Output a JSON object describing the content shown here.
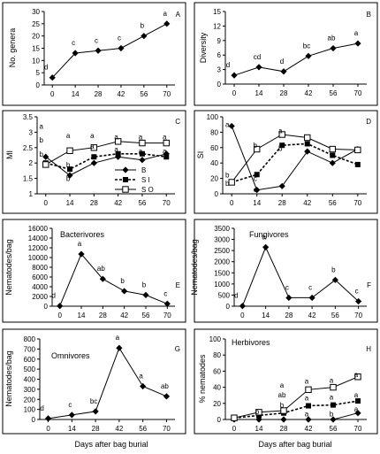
{
  "x_axis_title": "Days after bag burial",
  "chart_data": [
    {
      "id": "A",
      "type": "line",
      "panel_letter": "A",
      "title": "",
      "ylabel": "No. genera",
      "ylim": [
        0,
        30
      ],
      "yticks": [
        "0",
        "5",
        "10",
        "15",
        "20",
        "25",
        "30"
      ],
      "x": [
        0,
        14,
        28,
        42,
        56,
        70
      ],
      "xticks": [
        "0",
        "14",
        "28",
        "42",
        "56",
        "70"
      ],
      "series": [
        {
          "marker": "diamond",
          "line": "solid",
          "values": [
            3,
            13,
            14,
            15,
            20,
            25
          ],
          "labels": [
            "d",
            "c",
            "c",
            "c",
            "b",
            "a"
          ]
        }
      ]
    },
    {
      "id": "B",
      "type": "line",
      "panel_letter": "B",
      "title": "",
      "ylabel": "Diversity",
      "ylim": [
        0,
        15
      ],
      "yticks": [
        "0",
        "3",
        "6",
        "9",
        "12",
        "15"
      ],
      "x": [
        0,
        14,
        28,
        42,
        56,
        70
      ],
      "xticks": [
        "0",
        "14",
        "28",
        "42",
        "56",
        "70"
      ],
      "series": [
        {
          "marker": "diamond",
          "line": "solid",
          "values": [
            1.8,
            3.5,
            2.6,
            5.8,
            7.4,
            8.4
          ],
          "labels": [
            "d",
            "cd",
            "d",
            "bc",
            "ab",
            "a"
          ]
        }
      ]
    },
    {
      "id": "C",
      "type": "line",
      "panel_letter": "C",
      "title": "",
      "ylabel": "MI",
      "ylim": [
        1,
        3.5
      ],
      "yticks": [
        "1",
        "1.5",
        "2",
        "2.5",
        "3",
        "3.5"
      ],
      "x": [
        0,
        14,
        28,
        42,
        56,
        70
      ],
      "xticks": [
        "0",
        "14",
        "28",
        "42",
        "56",
        "70"
      ],
      "legend": [
        "B",
        "S I",
        "S O"
      ],
      "series": [
        {
          "name": "B",
          "marker": "diamond",
          "line": "solid",
          "values": [
            2.2,
            1.6,
            2.0,
            2.2,
            2.1,
            2.3
          ]
        },
        {
          "name": "S I",
          "marker": "square-filled",
          "line": "dashed",
          "values": [
            2.0,
            1.8,
            2.2,
            2.3,
            2.3,
            2.2
          ]
        },
        {
          "name": "S O",
          "marker": "square-open",
          "line": "solid",
          "values": [
            1.95,
            2.4,
            2.5,
            2.7,
            2.65,
            2.65
          ]
        }
      ],
      "annotations": [
        {
          "text": "a",
          "x": 0,
          "y": 3.2
        },
        {
          "text": "b",
          "x": 0,
          "y": 2.75
        },
        {
          "text": "b",
          "x": 0,
          "y": 2.3
        },
        {
          "text": "a",
          "x": 14,
          "y": 2.9
        },
        {
          "text": "b",
          "x": 14,
          "y": 1.5
        },
        {
          "text": "b",
          "x": 14,
          "y": 1.95
        },
        {
          "text": "a",
          "x": 28,
          "y": 2.9
        },
        {
          "text": "a",
          "x": 28,
          "y": 2.55
        },
        {
          "text": "a",
          "x": 42,
          "y": 2.85
        },
        {
          "text": "a",
          "x": 42,
          "y": 2.45
        },
        {
          "text": "a",
          "x": 56,
          "y": 2.85
        },
        {
          "text": "a",
          "x": 56,
          "y": 2.4
        },
        {
          "text": "a",
          "x": 70,
          "y": 2.85
        },
        {
          "text": "a",
          "x": 70,
          "y": 2.4
        }
      ]
    },
    {
      "id": "D",
      "type": "line",
      "panel_letter": "D",
      "title": "",
      "ylabel": "SI",
      "ylim": [
        0,
        100
      ],
      "yticks": [
        "0",
        "20",
        "40",
        "60",
        "80",
        "100"
      ],
      "x": [
        0,
        14,
        28,
        42,
        56,
        70
      ],
      "xticks": [
        "0",
        "14",
        "28",
        "42",
        "56",
        "70"
      ],
      "series": [
        {
          "name": "B",
          "marker": "diamond",
          "line": "solid",
          "values": [
            88,
            5,
            10,
            55,
            40,
            58
          ]
        },
        {
          "name": "S I",
          "marker": "square-filled",
          "line": "dashed",
          "values": [
            15,
            25,
            63,
            65,
            50,
            38
          ]
        },
        {
          "name": "S O",
          "marker": "square-open",
          "line": "solid",
          "values": [
            15,
            58,
            77,
            73,
            58,
            57
          ]
        }
      ],
      "annotations": [
        {
          "text": "a",
          "x": 0,
          "y": 90
        },
        {
          "text": "b",
          "x": 0,
          "y": 25
        },
        {
          "text": "b",
          "x": 0,
          "y": 14
        },
        {
          "text": "b",
          "x": 14,
          "y": 63
        },
        {
          "text": "c",
          "x": 14,
          "y": 20
        },
        {
          "text": "c",
          "x": 14,
          "y": 6
        },
        {
          "text": "a",
          "x": 28,
          "y": 82
        },
        {
          "text": "b",
          "x": 28,
          "y": 59
        }
      ]
    },
    {
      "id": "E",
      "type": "line",
      "panel_letter": "E",
      "title": "Bacterivores",
      "ylabel": "Nematodes/bag",
      "ylim": [
        0,
        16000
      ],
      "yticks": [
        "0",
        "2000",
        "4000",
        "6000",
        "8000",
        "10000",
        "12000",
        "14000",
        "16000"
      ],
      "x": [
        0,
        14,
        28,
        42,
        56,
        70
      ],
      "xticks": [
        "0",
        "14",
        "28",
        "42",
        "56",
        "70"
      ],
      "series": [
        {
          "marker": "diamond",
          "line": "solid",
          "values": [
            50,
            10700,
            5600,
            3100,
            2300,
            500
          ],
          "labels": [
            "d",
            "a",
            "ab",
            "b",
            "b",
            "c"
          ]
        }
      ]
    },
    {
      "id": "F",
      "type": "line",
      "panel_letter": "F",
      "title": "Fungivores",
      "ylabel": "Nematodes/bag",
      "ylim": [
        0,
        3500
      ],
      "yticks": [
        "0",
        "500",
        "1000",
        "1500",
        "2000",
        "2500",
        "3000",
        "3500"
      ],
      "x": [
        0,
        14,
        28,
        42,
        56,
        70
      ],
      "xticks": [
        "0",
        "14",
        "28",
        "42",
        "56",
        "70"
      ],
      "series": [
        {
          "marker": "diamond",
          "line": "solid",
          "values": [
            10,
            2650,
            380,
            380,
            1180,
            220
          ],
          "labels": [
            "d",
            "a",
            "c",
            "c",
            "b",
            "c"
          ]
        }
      ]
    },
    {
      "id": "G",
      "type": "line",
      "panel_letter": "G",
      "title": "Omnivores",
      "ylabel": "Nematodes/bag",
      "ylim": [
        0,
        800
      ],
      "yticks": [
        "0",
        "100",
        "200",
        "300",
        "400",
        "500",
        "600",
        "700",
        "800"
      ],
      "x": [
        0,
        14,
        28,
        42,
        56,
        70
      ],
      "xticks": [
        "0",
        "14",
        "28",
        "42",
        "56",
        "70"
      ],
      "series": [
        {
          "marker": "diamond",
          "line": "solid",
          "values": [
            10,
            45,
            80,
            710,
            330,
            230
          ],
          "labels": [
            "d",
            "c",
            "bc",
            "a",
            "a",
            "ab"
          ]
        }
      ]
    },
    {
      "id": "H",
      "type": "line",
      "panel_letter": "H",
      "title": "Herbivores",
      "ylabel": "% nematodes",
      "ylim": [
        0,
        100
      ],
      "yticks": [
        "0",
        "20",
        "40",
        "60",
        "80",
        "100"
      ],
      "x": [
        0,
        14,
        28,
        42,
        56,
        70
      ],
      "xticks": [
        "0",
        "14",
        "28",
        "42",
        "56",
        "70"
      ],
      "series": [
        {
          "name": "B",
          "marker": "diamond",
          "line": "solid",
          "values": [
            0,
            0,
            0,
            0,
            0,
            8
          ]
        },
        {
          "name": "S I",
          "marker": "square-filled",
          "line": "dashed",
          "values": [
            2,
            5,
            8,
            17,
            18,
            23
          ]
        },
        {
          "name": "S O",
          "marker": "square-open",
          "line": "solid",
          "values": [
            2,
            9,
            11,
            37,
            40,
            53
          ]
        }
      ],
      "annotations": [
        {
          "text": "b",
          "x": 14,
          "y": 10
        },
        {
          "text": "a",
          "x": 28,
          "y": 43
        },
        {
          "text": "ab",
          "x": 28,
          "y": 31
        },
        {
          "text": "b",
          "x": 28,
          "y": 18
        },
        {
          "text": "a",
          "x": 42,
          "y": 48
        },
        {
          "text": "a",
          "x": 42,
          "y": 27
        },
        {
          "text": "a",
          "x": 42,
          "y": 7
        },
        {
          "text": "a",
          "x": 56,
          "y": 49
        },
        {
          "text": "a",
          "x": 56,
          "y": 28
        },
        {
          "text": "b",
          "x": 56,
          "y": 7
        },
        {
          "text": "a",
          "x": 70,
          "y": 56
        },
        {
          "text": "a",
          "x": 70,
          "y": 31
        },
        {
          "text": "a",
          "x": 70,
          "y": 13
        }
      ]
    }
  ]
}
